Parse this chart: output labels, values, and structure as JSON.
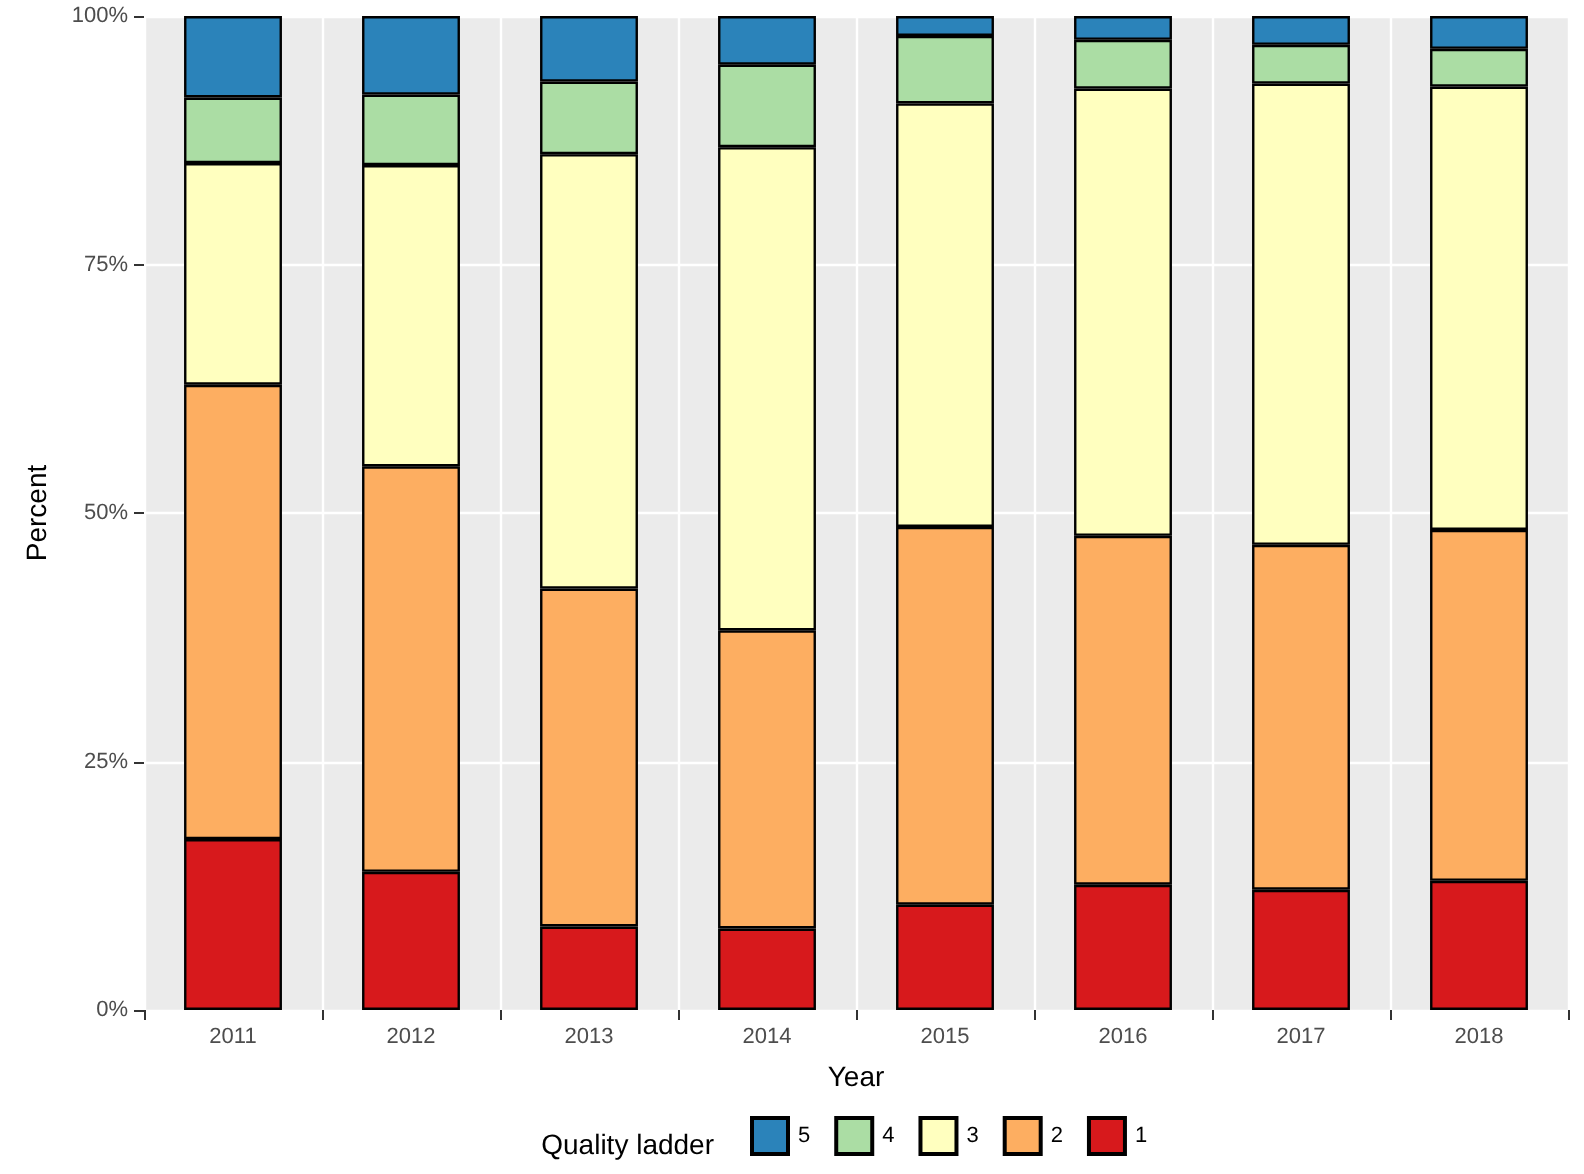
{
  "chart_data": {
    "type": "bar",
    "stacked": true,
    "xlabel": "Year",
    "ylabel": "Percent",
    "legend_title": "Quality ladder",
    "legend": "bottom",
    "grid": true,
    "categories": [
      "2011",
      "2012",
      "2013",
      "2014",
      "2015",
      "2016",
      "2017",
      "2018"
    ],
    "ylim": [
      0,
      100
    ],
    "yticks": [
      {
        "value": 0,
        "label": "0%"
      },
      {
        "value": 25,
        "label": "25%"
      },
      {
        "value": 50,
        "label": "50%"
      },
      {
        "value": 75,
        "label": "75%"
      },
      {
        "value": 100,
        "label": "100%"
      }
    ],
    "series": [
      {
        "name": "1",
        "color": "#d7191c",
        "values": [
          17.2,
          13.9,
          8.4,
          8.2,
          10.6,
          12.6,
          12.1,
          13.0
        ]
      },
      {
        "name": "2",
        "color": "#fdae61",
        "values": [
          45.7,
          40.8,
          34.0,
          30.0,
          38.0,
          35.1,
          34.7,
          35.3
        ]
      },
      {
        "name": "3",
        "color": "#ffffbf",
        "values": [
          22.3,
          30.3,
          43.7,
          48.6,
          42.6,
          45.0,
          46.4,
          44.6
        ]
      },
      {
        "name": "4",
        "color": "#abdda4",
        "values": [
          6.6,
          7.1,
          7.3,
          8.3,
          6.8,
          4.9,
          3.9,
          3.8
        ]
      },
      {
        "name": "5",
        "color": "#2b83ba",
        "values": [
          8.2,
          7.9,
          6.6,
          4.9,
          2.0,
          2.4,
          2.9,
          3.3
        ]
      }
    ]
  }
}
